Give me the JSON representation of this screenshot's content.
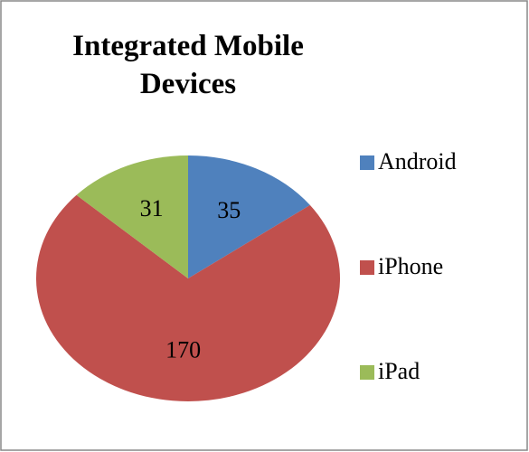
{
  "chart_data": {
    "type": "pie",
    "title": "Integrated Mobile Devices",
    "categories": [
      "Android",
      "iPhone",
      "iPad"
    ],
    "values": [
      35,
      170,
      31
    ],
    "colors": [
      "#4f81bd",
      "#c0504d",
      "#9bbb59"
    ],
    "legend": "right"
  }
}
